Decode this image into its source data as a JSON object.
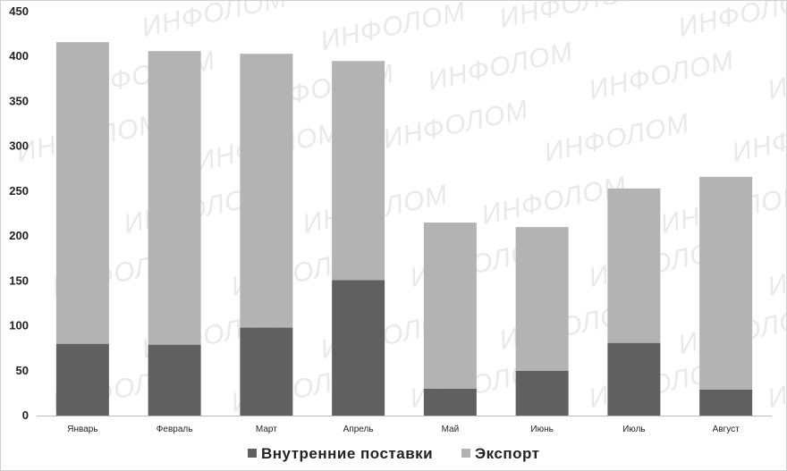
{
  "chart_data": {
    "type": "bar",
    "stacked": true,
    "categories": [
      "Январь",
      "Февраль",
      "Март",
      "Апрель",
      "Май",
      "Июнь",
      "Июль",
      "Август"
    ],
    "series": [
      {
        "name": "Внутренние поставки",
        "color": "#606060",
        "values": [
          80,
          79,
          98,
          151,
          30,
          50,
          81,
          29
        ]
      },
      {
        "name": "Экспорт",
        "color": "#b3b3b3",
        "values": [
          336,
          327,
          305,
          244,
          185,
          160,
          172,
          237
        ]
      }
    ],
    "yticks": [
      0,
      50,
      100,
      150,
      200,
      250,
      300,
      350,
      400,
      450
    ],
    "ylim": [
      0,
      450
    ],
    "grid": false,
    "legend_position": "bottom",
    "title": "",
    "xlabel": "",
    "ylabel": ""
  },
  "watermark": "ИНФОЛОМ"
}
